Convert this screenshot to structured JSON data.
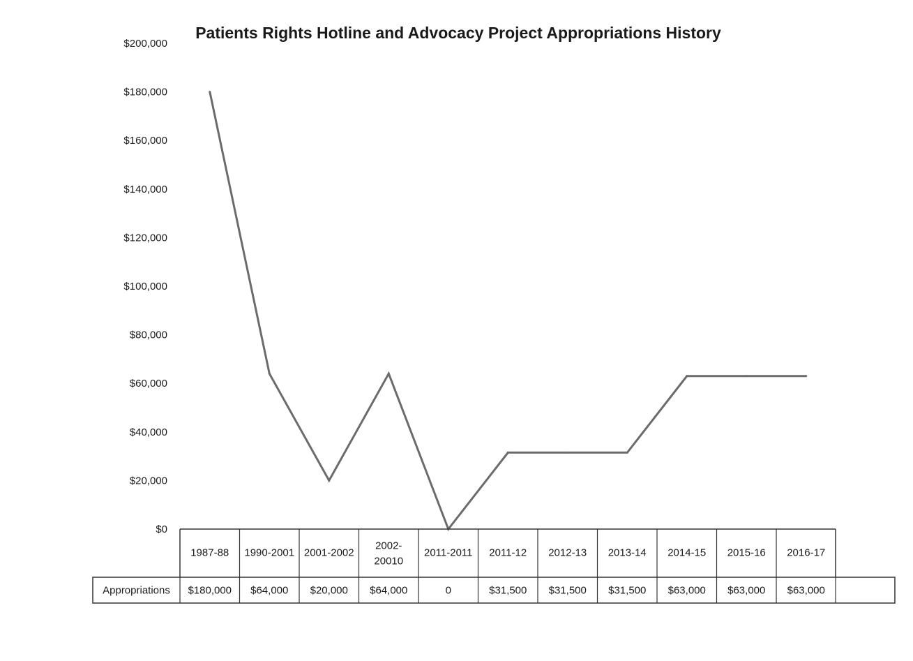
{
  "chart_data": {
    "type": "line",
    "title": "Patients Rights Hotline and Advocacy Project Appropriations History",
    "categories": [
      "1987-88",
      "1990-2001",
      "2001-2002",
      "2002-\n20010",
      "2011-2011",
      "2011-12",
      "2012-13",
      "2013-14",
      "2014-15",
      "2015-16",
      "2016-17"
    ],
    "series": [
      {
        "name": "Appropriations",
        "values": [
          180000,
          64000,
          20000,
          64000,
          0,
          31500,
          31500,
          31500,
          63000,
          63000,
          63000
        ],
        "display": [
          "$180,000",
          "$64,000",
          "$20,000",
          "$64,000",
          "0",
          "$31,500",
          "$31,500",
          "$31,500",
          "$63,000",
          "$63,000",
          "$63,000"
        ],
        "color": "#6b6b6b"
      }
    ],
    "y_ticks": [
      "$0",
      "$20,000",
      "$40,000",
      "$60,000",
      "$80,000",
      "$100,000",
      "$120,000",
      "$140,000",
      "$160,000",
      "$180,000",
      "$200,000"
    ],
    "ylim": [
      0,
      200000
    ],
    "xlabel": "",
    "ylabel": "",
    "grid": false,
    "legend": "data-table-below"
  }
}
